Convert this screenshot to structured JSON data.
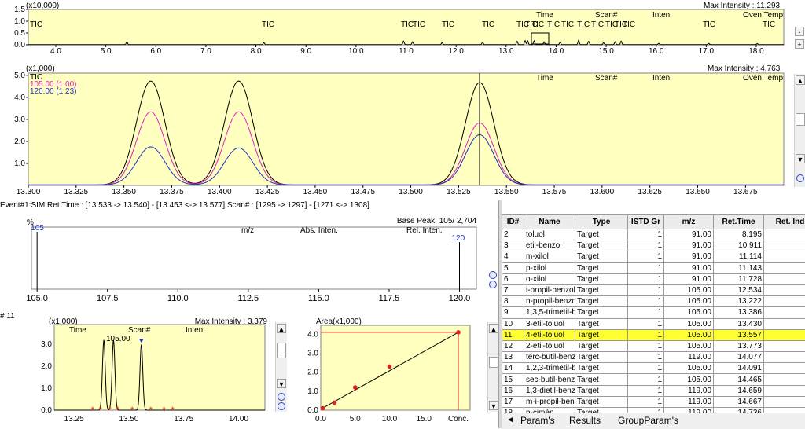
{
  "tic_panel": {
    "scale": "(x10,000)",
    "max_intensity": "Max Intensity :  11,293",
    "y_ticks": [
      "1.5",
      "1.0",
      "0.5",
      "0.0"
    ],
    "x_ticks": [
      "4.0",
      "5.0",
      "6.0",
      "7.0",
      "8.0",
      "9.0",
      "10.0",
      "11.0",
      "12.0",
      "13.0",
      "14.0",
      "15.0",
      "16.0",
      "17.0",
      "18.0"
    ],
    "labels": [
      "TIC",
      "TIC",
      "TIC",
      "TIC",
      "TIC",
      "TIC",
      "TIC",
      "TIC",
      "TIC",
      "TIC",
      "TIC",
      "TIC",
      "TIC",
      "TIC",
      "TIC",
      "TIC",
      "TIC",
      "TIC"
    ],
    "header": {
      "time": "Time",
      "scan": "Scan#",
      "inten": "Inten.",
      "oven": "Oven Temp"
    }
  },
  "zoom_panel": {
    "scale": "(x1,000)",
    "max_intensity": "Max Intensity :  4,763",
    "legend": {
      "tic": "TIC",
      "s1": "105.00 (1.00)",
      "s2": "120.00 (1.23)"
    },
    "header": {
      "time": "Time",
      "scan": "Scan#",
      "inten": "Inten.",
      "oven": "Oven Temp"
    },
    "y_ticks": [
      "5.0",
      "4.0",
      "3.0",
      "2.0",
      "1.0"
    ],
    "x_ticks": [
      "13.300",
      "13.325",
      "13.350",
      "13.375",
      "13.400",
      "13.425",
      "13.450",
      "13.475",
      "13.500",
      "13.525",
      "13.550",
      "13.575",
      "13.600",
      "13.625",
      "13.650",
      "13.675"
    ],
    "peaks": [
      {
        "rt": 13.364,
        "tic": 4.72,
        "m105": 3.32,
        "m120": 1.73
      },
      {
        "rt": 13.41,
        "tic": 4.72,
        "m105": 3.32,
        "m120": 1.68
      },
      {
        "rt": 13.536,
        "tic": 4.65,
        "m105": 2.82,
        "m120": 2.28
      }
    ]
  },
  "event_line": "Event#1:SIM  Ret.Time : [13.533 -> 13.540] - [13.453 <-> 13.577]  Scan# : [1295 -> 1297] - [1271 <-> 1308]",
  "spectrum_panel": {
    "percent": "%",
    "base_peak": "Base Peak: 105/  2,704",
    "header": {
      "mz": "m/z",
      "abs": "Abs. Inten.",
      "rel": "Rel. Inten."
    },
    "x_ticks": [
      "105.0",
      "107.5",
      "110.0",
      "112.5",
      "115.0",
      "117.5",
      "120.0"
    ],
    "peaks": [
      {
        "mz": "105",
        "rel": 100
      },
      {
        "mz": "120",
        "rel": 82
      }
    ]
  },
  "compound_panel": {
    "id_label": "#   11",
    "scale": "(x1,000)",
    "max_intensity": "Max Intensity :  3,379",
    "header": {
      "time": "Time",
      "scan": "Scan#",
      "inten": "Inten."
    },
    "peak_label": "105.00",
    "y_ticks": [
      "3.0",
      "2.0",
      "1.0",
      "0.0"
    ],
    "x_ticks": [
      "13.25",
      "13.50",
      "13.75",
      "14.00"
    ]
  },
  "calib_panel": {
    "y_title": "Area(x1,000)",
    "y_ticks": [
      "4.0",
      "3.0",
      "2.0",
      "1.0",
      "0.0"
    ],
    "x_ticks": [
      "0.0",
      "5.0",
      "10.0",
      "15.0",
      "Conc."
    ],
    "points": [
      [
        0.3,
        0.1
      ],
      [
        2.0,
        0.4
      ],
      [
        5.0,
        1.2
      ],
      [
        10.0,
        2.3
      ],
      [
        20.0,
        4.1
      ]
    ]
  },
  "table": {
    "columns": [
      "ID#",
      "Name",
      "Type",
      "ISTD Gr",
      "m/z",
      "Ret.Time",
      "Ret. Ind"
    ],
    "rows": [
      {
        "id": "2",
        "name": "toluol",
        "type": "Target",
        "istd": "1",
        "mz": "91.00",
        "rt": "8.195"
      },
      {
        "id": "3",
        "name": "etil-benzol",
        "type": "Target",
        "istd": "1",
        "mz": "91.00",
        "rt": "10.911"
      },
      {
        "id": "4",
        "name": "m-xilol",
        "type": "Target",
        "istd": "1",
        "mz": "91.00",
        "rt": "11.114"
      },
      {
        "id": "5",
        "name": "p-xilol",
        "type": "Target",
        "istd": "1",
        "mz": "91.00",
        "rt": "11.143"
      },
      {
        "id": "6",
        "name": "o-xilol",
        "type": "Target",
        "istd": "1",
        "mz": "91.00",
        "rt": "11.728"
      },
      {
        "id": "7",
        "name": "i-propil-benzol",
        "type": "Target",
        "istd": "1",
        "mz": "105.00",
        "rt": "12.534"
      },
      {
        "id": "8",
        "name": "n-propil-benzol",
        "type": "Target",
        "istd": "1",
        "mz": "105.00",
        "rt": "13.222"
      },
      {
        "id": "9",
        "name": "1,3,5-trimetil-b",
        "type": "Target",
        "istd": "1",
        "mz": "105.00",
        "rt": "13.386"
      },
      {
        "id": "10",
        "name": "3-etil-toluol",
        "type": "Target",
        "istd": "1",
        "mz": "105.00",
        "rt": "13.430"
      },
      {
        "id": "11",
        "name": "4-etil-toluol",
        "type": "Target",
        "istd": "1",
        "mz": "105.00",
        "rt": "13.557"
      },
      {
        "id": "12",
        "name": "2-etil-toluol",
        "type": "Target",
        "istd": "1",
        "mz": "105.00",
        "rt": "13.773"
      },
      {
        "id": "13",
        "name": "terc-butil-benz",
        "type": "Target",
        "istd": "1",
        "mz": "119.00",
        "rt": "14.077"
      },
      {
        "id": "14",
        "name": "1,2,3-trimetil-b",
        "type": "Target",
        "istd": "1",
        "mz": "105.00",
        "rt": "14.091"
      },
      {
        "id": "15",
        "name": "sec-butil-benz",
        "type": "Target",
        "istd": "1",
        "mz": "105.00",
        "rt": "14.465"
      },
      {
        "id": "16",
        "name": "1,3-dietil-benz",
        "type": "Target",
        "istd": "1",
        "mz": "119.00",
        "rt": "14.659"
      },
      {
        "id": "17",
        "name": "m-i-propil-ben",
        "type": "Target",
        "istd": "1",
        "mz": "119.00",
        "rt": "14.667"
      },
      {
        "id": "18",
        "name": "p-cimén",
        "type": "Target",
        "istd": "1",
        "mz": "119.00",
        "rt": "14.736"
      }
    ],
    "highlight_id": "11"
  },
  "tabs": [
    "Param's",
    "Results",
    "GroupParam's"
  ],
  "colors": {
    "panel_bg": "#ffffc0",
    "tic": "#000000",
    "m105": "#e020c0",
    "m120": "#2030c0",
    "highlight": "#ffff33"
  }
}
